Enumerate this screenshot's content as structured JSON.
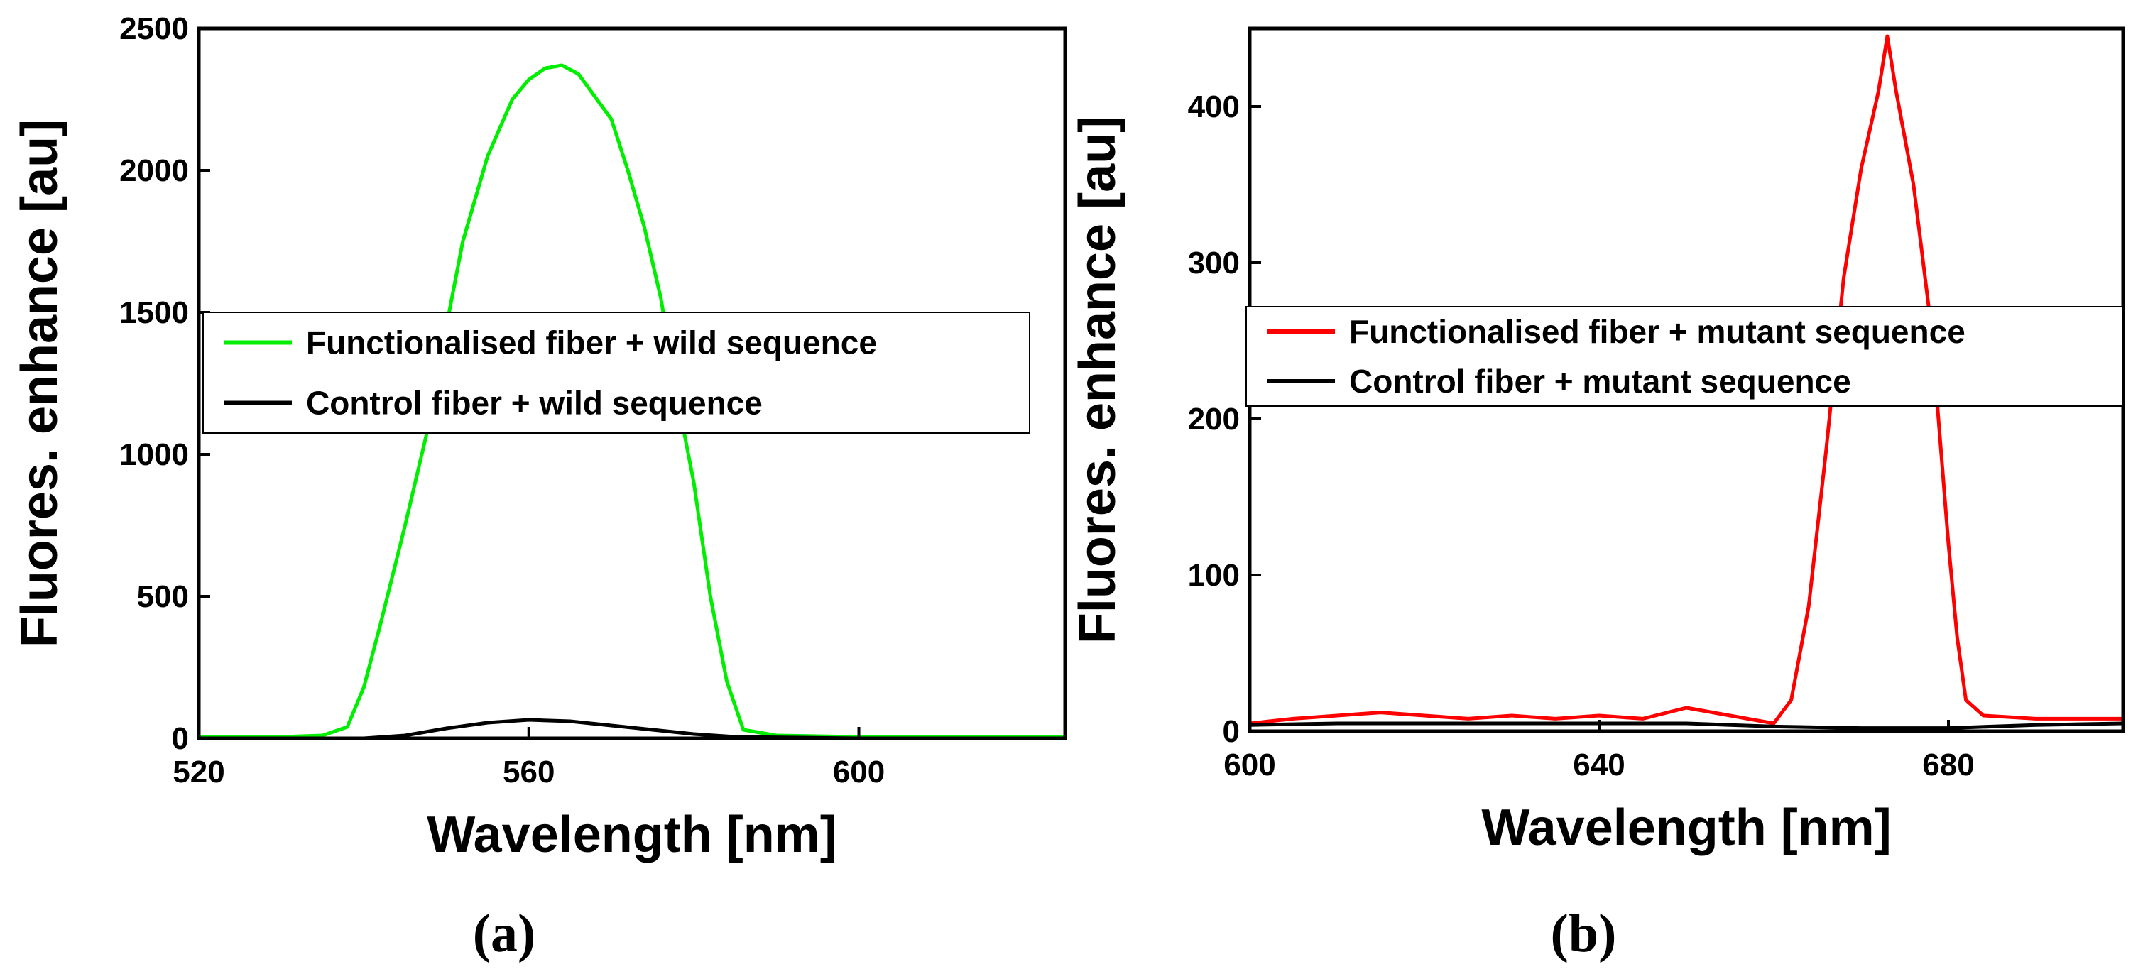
{
  "chart_data": [
    {
      "type": "line",
      "panel_label": "(a)",
      "xlabel": "Wavelength [nm]",
      "ylabel": "Fluores. enhance [au]",
      "xlim": [
        520,
        625
      ],
      "ylim": [
        0,
        2500
      ],
      "xticks": [
        520,
        560,
        600
      ],
      "yticks": [
        0,
        500,
        1000,
        1500,
        2000,
        2500
      ],
      "legend_position": "center",
      "series": [
        {
          "name": "Functionalised fiber + wild sequence",
          "color": "#00ee00",
          "x": [
            520,
            530,
            535,
            538,
            540,
            542,
            545,
            548,
            550,
            552,
            555,
            558,
            560,
            562,
            564,
            566,
            568,
            570,
            572,
            574,
            576,
            578,
            580,
            582,
            584,
            586,
            590,
            600,
            610,
            625
          ],
          "y": [
            5,
            5,
            10,
            40,
            180,
            400,
            750,
            1120,
            1450,
            1750,
            2050,
            2250,
            2320,
            2360,
            2370,
            2340,
            2260,
            2180,
            2000,
            1800,
            1550,
            1200,
            900,
            500,
            200,
            30,
            10,
            5,
            5,
            5
          ]
        },
        {
          "name": "Control fiber + wild sequence",
          "color": "#000000",
          "x": [
            520,
            540,
            545,
            550,
            555,
            560,
            565,
            570,
            575,
            580,
            585,
            600,
            625
          ],
          "y": [
            0,
            0,
            10,
            35,
            55,
            65,
            60,
            45,
            30,
            15,
            5,
            0,
            0
          ]
        }
      ]
    },
    {
      "type": "line",
      "panel_label": "(b)",
      "xlabel": "Wavelength [nm]",
      "ylabel": "Fluores. enhance [au]",
      "xlim": [
        600,
        700
      ],
      "ylim": [
        0,
        450
      ],
      "xticks": [
        600,
        640,
        680
      ],
      "yticks": [
        0,
        100,
        200,
        300,
        400
      ],
      "legend_position": "center",
      "series": [
        {
          "name": "Functionalised fiber + mutant sequence",
          "color": "#ff0000",
          "x": [
            600,
            605,
            610,
            615,
            620,
            625,
            630,
            635,
            640,
            645,
            650,
            655,
            660,
            662,
            664,
            666,
            668,
            670,
            672,
            673,
            674,
            676,
            678,
            680,
            681,
            682,
            684,
            690,
            700
          ],
          "y": [
            5,
            8,
            10,
            12,
            10,
            8,
            10,
            8,
            10,
            8,
            15,
            10,
            5,
            20,
            80,
            180,
            290,
            360,
            410,
            445,
            410,
            350,
            260,
            120,
            60,
            20,
            10,
            8,
            8
          ]
        },
        {
          "name": "Control fiber + mutant sequence",
          "color": "#000000",
          "x": [
            600,
            610,
            620,
            630,
            640,
            650,
            655,
            660,
            670,
            680,
            690,
            700
          ],
          "y": [
            4,
            5,
            5,
            5,
            5,
            5,
            4,
            3,
            2,
            2,
            4,
            5
          ]
        }
      ]
    }
  ]
}
